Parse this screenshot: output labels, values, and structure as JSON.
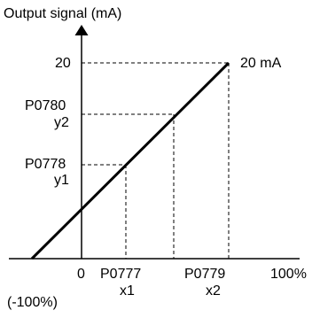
{
  "diagram": {
    "y_axis_title": "Output signal (mA)",
    "y_labels": {
      "top": "20",
      "mid_code": "P0780",
      "mid_var": "y2",
      "low_code": "P0778",
      "low_var": "y1"
    },
    "x_labels": {
      "zero": "0",
      "x1_code": "P0777",
      "x1_var": "x1",
      "x2_code": "P0779",
      "x2_var": "x2",
      "full": "100%",
      "negative": "(-100%)"
    },
    "endpoint_label": "20 mA",
    "colors": {
      "line": "#000000",
      "background": "#ffffff"
    }
  }
}
